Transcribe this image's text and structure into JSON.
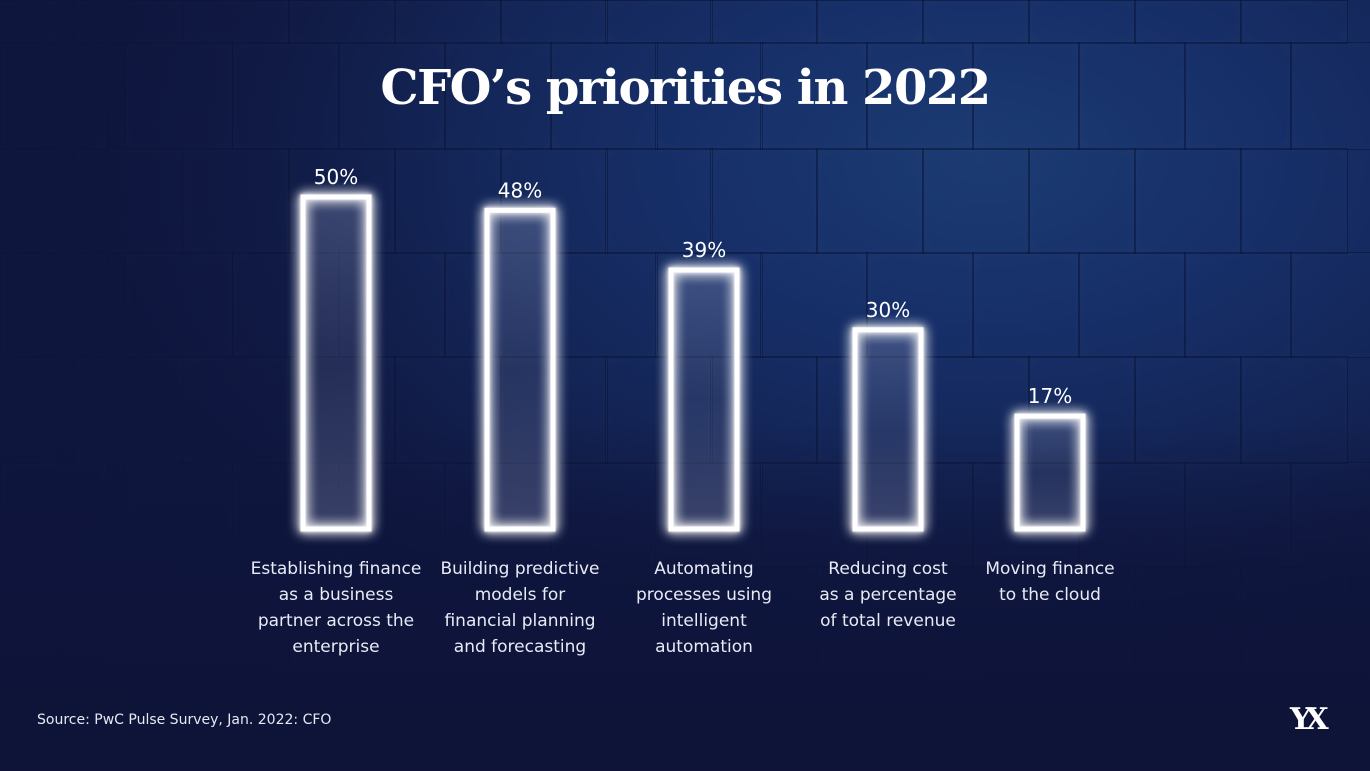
{
  "colors": {
    "background": "#14275a",
    "bar_stroke": "#ffffff",
    "text": "#ffffff"
  },
  "title": "CFO’s priorities in 2022",
  "source": "Source: PwC Pulse Survey, Jan. 2022: CFO",
  "logo": {
    "icon": "yx-monogram-logo",
    "text": "YX"
  },
  "chart_data": {
    "type": "bar",
    "title": "CFO’s priorities in 2022",
    "xlabel": "",
    "ylabel": "",
    "ylim": [
      0,
      50
    ],
    "grid": false,
    "legend": "none",
    "categories": [
      "Establishing finance as a business partner across the enterprise",
      "Building predictive models for financial planning and forecasting",
      "Automating processes using intelligent automation",
      "Reducing cost as a percentage of total revenue",
      "Moving finance to the cloud"
    ],
    "category_lines": [
      [
        "Establishing finance",
        "as a business",
        "partner across the",
        "enterprise"
      ],
      [
        "Building predictive",
        "models for",
        "financial planning",
        "and forecasting"
      ],
      [
        "Automating",
        "processes using",
        "intelligent",
        "automation"
      ],
      [
        "Reducing cost",
        "as a percentage",
        "of total revenue"
      ],
      [
        "Moving finance",
        "to the cloud"
      ]
    ],
    "values": [
      50,
      48,
      39,
      30,
      17
    ],
    "value_labels": [
      "50%",
      "48%",
      "39%",
      "30%",
      "17%"
    ],
    "unit": "%"
  }
}
